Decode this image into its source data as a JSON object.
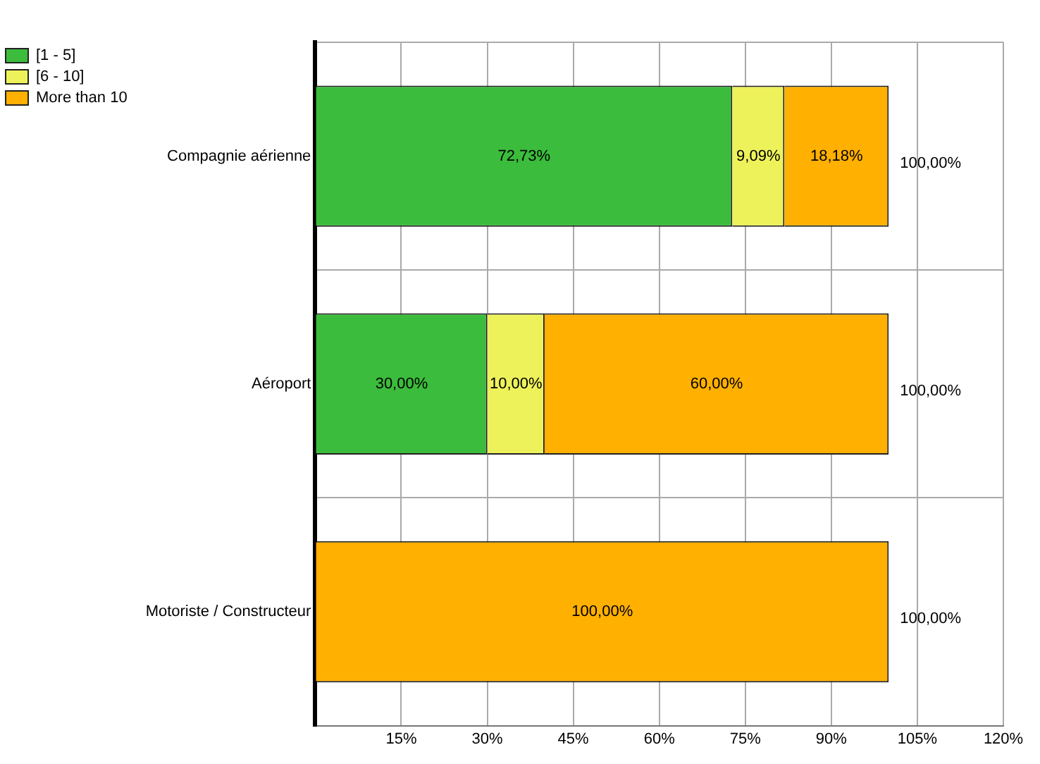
{
  "chart_data": {
    "type": "bar",
    "orientation": "horizontal",
    "stacked": true,
    "categories": [
      "Compagnie aérienne",
      "Aéroport",
      "Motoriste / Constructeur"
    ],
    "series": [
      {
        "name": "[1 - 5]",
        "color": "#3cbc3c",
        "values": [
          72.73,
          30,
          0
        ],
        "value_labels": [
          "72,73%",
          "30,00%",
          null
        ]
      },
      {
        "name": "[6 - 10]",
        "color": "#eef25a",
        "values": [
          9.09,
          10,
          0
        ],
        "value_labels": [
          "9,09%",
          "10,00%",
          null
        ]
      },
      {
        "name": "More than 10",
        "color": "#ffb000",
        "values": [
          18.18,
          60,
          100
        ],
        "value_labels": [
          "18,18%",
          "60,00%",
          "100,00%"
        ]
      }
    ],
    "totals": [
      "100,00%",
      "100,00%",
      "100,00%"
    ],
    "xlim": [
      0,
      120
    ],
    "xticks": [
      {
        "value": 0,
        "label": null
      },
      {
        "value": 15,
        "label": "15%"
      },
      {
        "value": 30,
        "label": "30%"
      },
      {
        "value": 45,
        "label": "45%"
      },
      {
        "value": 60,
        "label": "60%"
      },
      {
        "value": 75,
        "label": "75%"
      },
      {
        "value": 90,
        "label": "90%"
      },
      {
        "value": 105,
        "label": "105%"
      },
      {
        "value": 120,
        "label": "120%"
      }
    ],
    "grid": true,
    "legend": "top left"
  }
}
